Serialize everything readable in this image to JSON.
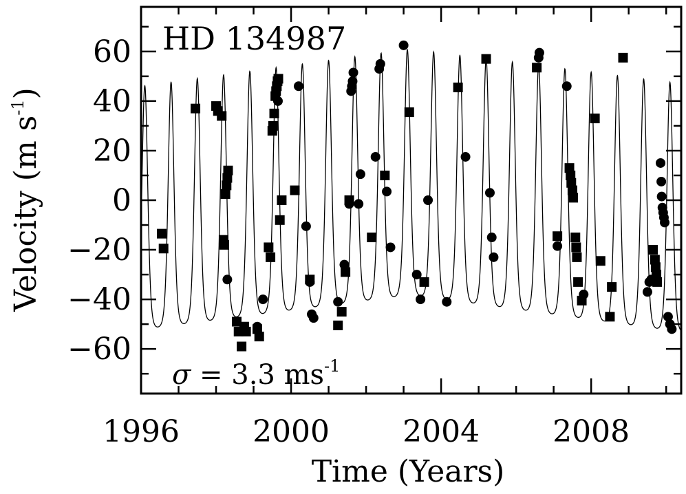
{
  "chart_data": {
    "type": "scatter",
    "title": "HD 134987",
    "annotation": {
      "sigma_symbol": "σ",
      "sigma_text": " = 3.3 ms",
      "sigma_sup": "-1"
    },
    "xlabel": "Time (Years)",
    "ylabel": {
      "text": "Velocity (m s",
      "sup": "-1",
      "close": ")"
    },
    "xlim": [
      1996.0,
      2010.4
    ],
    "ylim": [
      -78,
      78
    ],
    "x_ticks": [
      1996,
      2000,
      2004,
      2008
    ],
    "x_tick_labels": [
      "1996",
      "2000",
      "2004",
      "2008"
    ],
    "y_ticks": [
      -60,
      -40,
      -20,
      0,
      20,
      40,
      60
    ],
    "y_tick_labels": [
      "−60",
      "−40",
      "−20",
      "0",
      "20",
      "40",
      "60"
    ],
    "grid": false,
    "model_curve": {
      "description_free": true,
      "period_years": 0.7,
      "phase_ref_year": 1996.1,
      "max_start": 46,
      "max_mid": 61,
      "max_end": 47,
      "min_start": -52,
      "min_mid": -38,
      "min_end": -53
    },
    "series": [
      {
        "marker": "square",
        "points": [
          [
            1996.55,
            -13.5
          ],
          [
            1996.6,
            -19.5
          ],
          [
            1997.45,
            37
          ],
          [
            1998.0,
            38
          ],
          [
            1998.05,
            36
          ],
          [
            1998.15,
            34
          ],
          [
            1998.25,
            2.5
          ],
          [
            1998.28,
            6
          ],
          [
            1998.3,
            9
          ],
          [
            1998.32,
            12
          ],
          [
            1998.2,
            -16
          ],
          [
            1998.22,
            -18
          ],
          [
            1998.55,
            -49
          ],
          [
            1998.6,
            -53
          ],
          [
            1998.68,
            -59
          ],
          [
            1998.75,
            -51
          ],
          [
            1998.8,
            -53
          ],
          [
            1999.1,
            -52
          ],
          [
            1999.15,
            -55
          ],
          [
            1999.4,
            -19
          ],
          [
            1999.45,
            -23
          ],
          [
            1999.5,
            28
          ],
          [
            1999.52,
            30
          ],
          [
            1999.55,
            35
          ],
          [
            1999.58,
            42
          ],
          [
            1999.6,
            44
          ],
          [
            1999.62,
            46
          ],
          [
            1999.64,
            48
          ],
          [
            1999.66,
            49
          ],
          [
            1999.7,
            -8
          ],
          [
            1999.75,
            0
          ],
          [
            2000.1,
            4
          ],
          [
            2000.5,
            -32
          ],
          [
            2001.25,
            -50.5
          ],
          [
            2001.35,
            -45
          ],
          [
            2001.45,
            -29
          ],
          [
            2001.55,
            0
          ],
          [
            2002.15,
            -15
          ],
          [
            2002.5,
            10
          ],
          [
            2003.15,
            35.5
          ],
          [
            2003.55,
            -33
          ],
          [
            2004.45,
            45.5
          ],
          [
            2005.2,
            57
          ],
          [
            2006.55,
            53.5
          ],
          [
            2007.1,
            -14.5
          ],
          [
            2007.42,
            13
          ],
          [
            2007.45,
            10
          ],
          [
            2007.47,
            7
          ],
          [
            2007.5,
            4
          ],
          [
            2007.52,
            1
          ],
          [
            2007.58,
            -15
          ],
          [
            2007.6,
            -19
          ],
          [
            2007.62,
            -23
          ],
          [
            2007.65,
            -33
          ],
          [
            2007.75,
            -40.5
          ],
          [
            2008.1,
            33
          ],
          [
            2008.25,
            -24.5
          ],
          [
            2008.5,
            -47
          ],
          [
            2008.55,
            -35
          ],
          [
            2008.85,
            57.5
          ],
          [
            2009.65,
            -20
          ],
          [
            2009.7,
            -24
          ],
          [
            2009.72,
            -27
          ],
          [
            2009.74,
            -30
          ],
          [
            2009.76,
            -33
          ]
        ]
      },
      {
        "marker": "circle",
        "points": [
          [
            1998.3,
            -32
          ],
          [
            1999.1,
            -51
          ],
          [
            1999.25,
            -40
          ],
          [
            1999.65,
            40
          ],
          [
            2000.2,
            46
          ],
          [
            2000.4,
            -10.5
          ],
          [
            2000.5,
            -33
          ],
          [
            2000.55,
            -46
          ],
          [
            2000.6,
            -47.5
          ],
          [
            2001.25,
            -41
          ],
          [
            2001.42,
            -26
          ],
          [
            2001.55,
            -1.5
          ],
          [
            2001.6,
            44
          ],
          [
            2001.62,
            46
          ],
          [
            2001.64,
            48
          ],
          [
            2001.66,
            51.5
          ],
          [
            2001.8,
            -1.5
          ],
          [
            2001.85,
            10.5
          ],
          [
            2002.25,
            17.5
          ],
          [
            2002.35,
            53
          ],
          [
            2002.38,
            55
          ],
          [
            2002.55,
            3.5
          ],
          [
            2002.65,
            -19
          ],
          [
            2003.0,
            62.5
          ],
          [
            2003.35,
            -30
          ],
          [
            2003.45,
            -40
          ],
          [
            2003.65,
            0
          ],
          [
            2004.15,
            -41
          ],
          [
            2004.65,
            17.5
          ],
          [
            2005.3,
            3
          ],
          [
            2005.35,
            -15
          ],
          [
            2005.4,
            -23
          ],
          [
            2006.6,
            57.5
          ],
          [
            2006.62,
            59.5
          ],
          [
            2007.1,
            -18.5
          ],
          [
            2007.35,
            46
          ],
          [
            2007.8,
            -38
          ],
          [
            2009.5,
            -37
          ],
          [
            2009.55,
            -33
          ],
          [
            2009.6,
            -32
          ],
          [
            2009.85,
            15
          ],
          [
            2009.87,
            7.5
          ],
          [
            2009.88,
            1.5
          ],
          [
            2009.9,
            -3
          ],
          [
            2009.92,
            -5
          ],
          [
            2009.94,
            -7
          ],
          [
            2009.96,
            -9
          ],
          [
            2010.05,
            -47
          ],
          [
            2010.1,
            -50
          ],
          [
            2010.15,
            -52
          ]
        ]
      }
    ]
  }
}
